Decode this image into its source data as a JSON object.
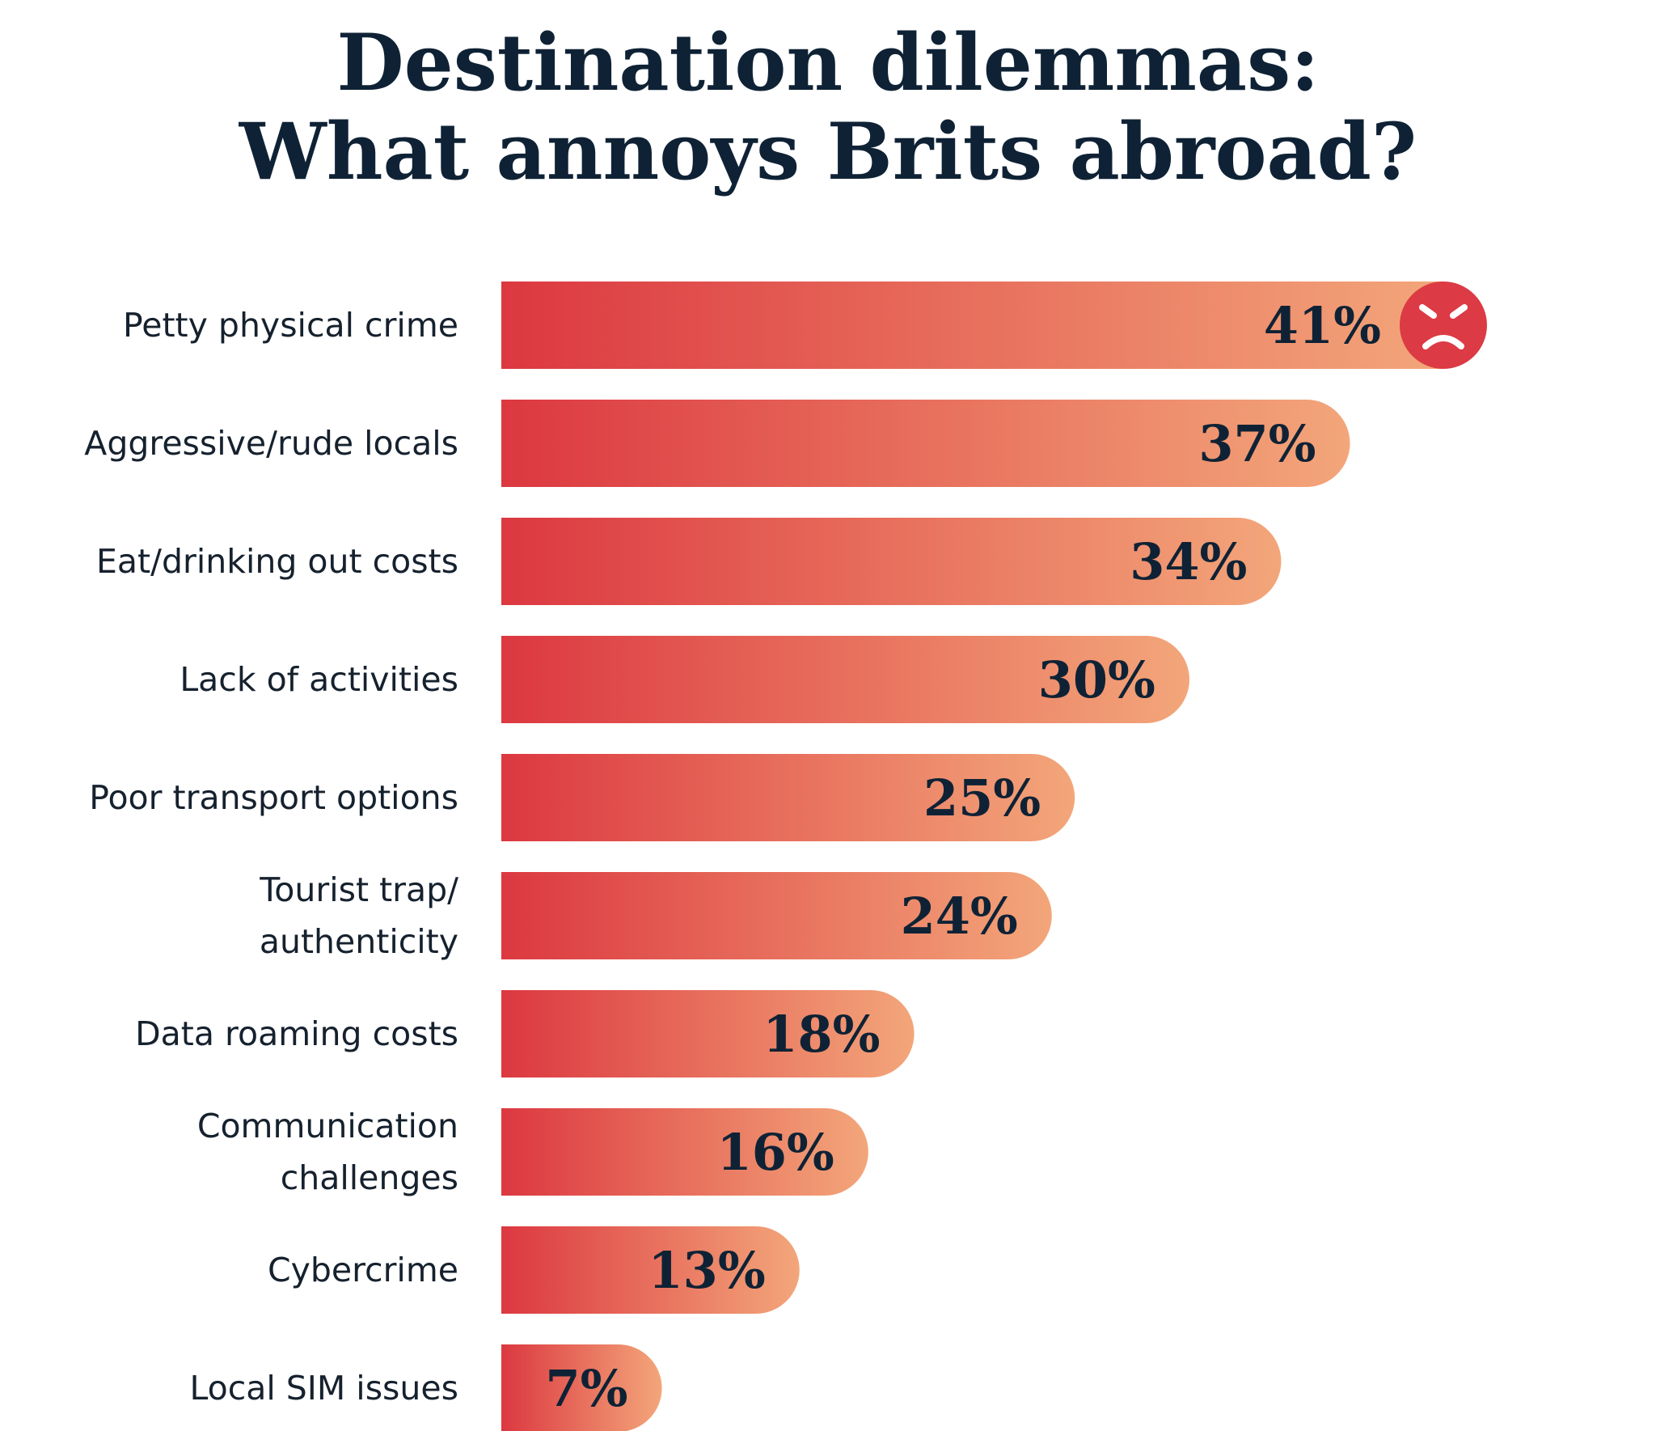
{
  "title": {
    "line1": "Destination dilemmas:",
    "line2": "What annoys Brits abroad?"
  },
  "colors": {
    "title": "#0f2235",
    "bar_start": "#dc3840",
    "bar_end": "#f3a67a",
    "label_text": "#16212e",
    "face_icon_bg": "#dc3a44",
    "face_icon_fg": "#ffffff"
  },
  "chart_data": {
    "type": "bar",
    "orientation": "horizontal",
    "title": "Destination dilemmas: What annoys Brits abroad?",
    "xlabel": "",
    "ylabel": "",
    "unit": "%",
    "xlim": [
      0,
      41
    ],
    "grid": false,
    "legend": "none",
    "categories": [
      [
        "Petty physical crime"
      ],
      [
        "Aggressive/rude locals"
      ],
      [
        "Eat/drinking out costs"
      ],
      [
        "Lack of activities"
      ],
      [
        "Poor transport options"
      ],
      [
        "Tourist trap/",
        "authenticity"
      ],
      [
        "Data roaming costs"
      ],
      [
        "Communication",
        "challenges"
      ],
      [
        "Cybercrime"
      ],
      [
        "Local SIM issues"
      ]
    ],
    "values": [
      41,
      37,
      34,
      30,
      25,
      24,
      18,
      16,
      13,
      7
    ],
    "value_labels": [
      "41%",
      "37%",
      "34%",
      "30%",
      "25%",
      "24%",
      "18%",
      "16%",
      "13%",
      "7%"
    ],
    "icon": "angry-face-icon"
  }
}
